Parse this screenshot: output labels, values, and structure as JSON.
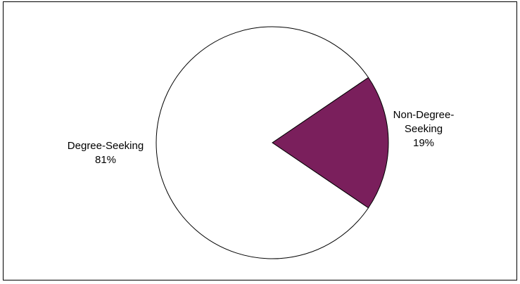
{
  "chart_data": {
    "type": "pie",
    "slices": [
      {
        "label_lines": [
          "Degree-Seeking"
        ],
        "percent_label": "81%",
        "value": 81,
        "color": "#ffffff"
      },
      {
        "label_lines": [
          "Non-Degree-",
          "Seeking"
        ],
        "percent_label": "19%",
        "value": 19,
        "color": "#7a1f5c"
      }
    ],
    "outline_color": "#000000",
    "legend": "none",
    "labels": "outside, category name and percentage"
  }
}
